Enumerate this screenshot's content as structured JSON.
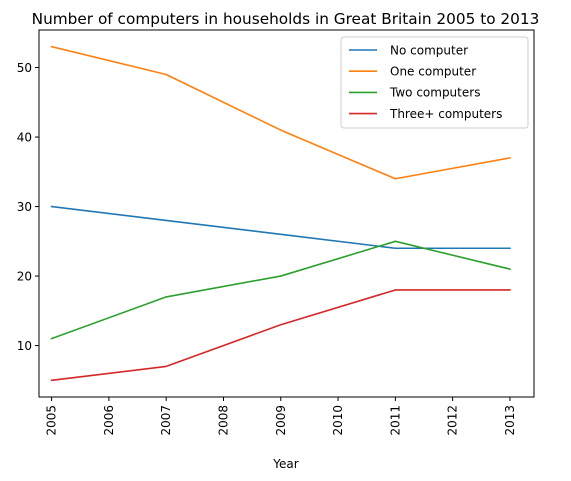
{
  "chart_data": {
    "type": "line",
    "title": "Number of computers in households in Great Britain 2005 to 2013",
    "xlabel": "Year",
    "ylabel": "",
    "x": [
      2005,
      2007,
      2009,
      2011,
      2013
    ],
    "xlim": [
      2004.78,
      2013.42
    ],
    "ylim": [
      2.6,
      55.4
    ],
    "xticks": [
      {
        "value": 2005,
        "label": "2005"
      },
      {
        "value": 2006,
        "label": "2006"
      },
      {
        "value": 2007,
        "label": "2007"
      },
      {
        "value": 2008,
        "label": "2008"
      },
      {
        "value": 2009,
        "label": "2009"
      },
      {
        "value": 2010,
        "label": "2010"
      },
      {
        "value": 2011,
        "label": "2011"
      },
      {
        "value": 2012,
        "label": "2012"
      },
      {
        "value": 2013,
        "label": "2013"
      }
    ],
    "yticks": [
      {
        "value": 10,
        "label": "10"
      },
      {
        "value": 20,
        "label": "20"
      },
      {
        "value": 30,
        "label": "30"
      },
      {
        "value": 40,
        "label": "40"
      },
      {
        "value": 50,
        "label": "50"
      }
    ],
    "grid": false,
    "legend_position": "upper right",
    "series": [
      {
        "name": "No computer",
        "color": "#1f77b4",
        "values": [
          30,
          28,
          26,
          24,
          24
        ]
      },
      {
        "name": "One computer",
        "color": "#ff7f0e",
        "values": [
          53,
          49,
          41,
          34,
          37
        ]
      },
      {
        "name": "Two computers",
        "color": "#2ca02c",
        "values": [
          11,
          17,
          20,
          25,
          21
        ]
      },
      {
        "name": "Three+ computers",
        "color": "#d62728",
        "values": [
          5,
          7,
          13,
          18,
          18
        ]
      }
    ]
  }
}
